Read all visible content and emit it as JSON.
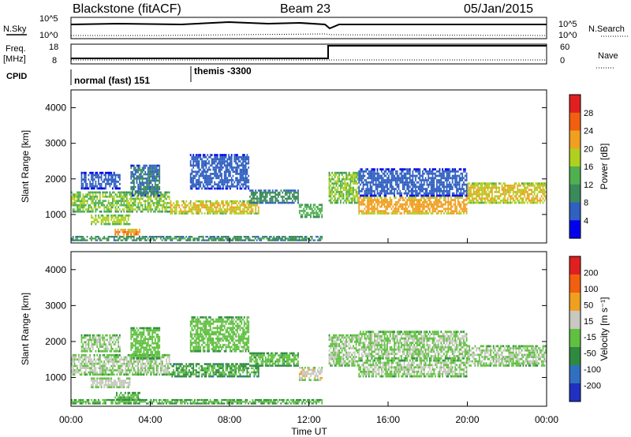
{
  "header": {
    "station": "Blackstone (fitACF)",
    "beam": "Beam 23",
    "date": "05/Jan/2015"
  },
  "params": {
    "nsky_label": "N.Sky",
    "nsearch_label": "N.Search",
    "freq_label": "Freq.",
    "freq_unit": "[MHz]",
    "nave_label": "Nave",
    "cpid_label": "CPID",
    "left_ticks_noise": [
      "10^5",
      "10^0"
    ],
    "right_ticks_noise": [
      "10^5",
      "10^0"
    ],
    "left_ticks_freq": [
      "18",
      "8"
    ],
    "right_ticks_nave": [
      "60",
      "0"
    ],
    "cpid_segments": [
      {
        "label": "normal (fast) 151",
        "start": "00:00"
      },
      {
        "label": "themis -3300",
        "start": "06:00"
      }
    ],
    "freq_step_time": "13:00"
  },
  "panels": {
    "power": {
      "ylabel": "Slant Range [km]",
      "cbar_label": "Power [dB]",
      "cbar_ticks": [
        "28",
        "24",
        "20",
        "16",
        "12",
        "8",
        "4"
      ]
    },
    "velocity": {
      "ylabel": "Slant Range [km]",
      "cbar_label": "Velocity [m s⁻¹]",
      "cbar_ticks": [
        "200",
        "100",
        "50",
        "15",
        "-15",
        "-50",
        "-100",
        "-200"
      ]
    }
  },
  "xaxis_label": "Time UT",
  "colors": {
    "power_scale": [
      "#0000ee",
      "#3060c0",
      "#3a8a5a",
      "#50b050",
      "#b0d020",
      "#f0a020",
      "#f06010",
      "#e02020"
    ],
    "velocity_scale": [
      "#2030c0",
      "#3070c0",
      "#2f8a3f",
      "#60c040",
      "#c8c8c0",
      "#f0a020",
      "#f06010",
      "#e02020"
    ]
  },
  "chart_data": [
    {
      "type": "heatmap",
      "title": "Power",
      "xlabel": "Time UT",
      "ylabel": "Slant Range [km]",
      "x_ticks": [
        "00:00",
        "04:00",
        "08:00",
        "12:00",
        "16:00",
        "20:00",
        "00:00"
      ],
      "y_ticks": [
        1000,
        2000,
        3000,
        4000
      ],
      "xlim": [
        0,
        24
      ],
      "ylim": [
        200,
        4500
      ],
      "colorbar": {
        "label": "Power [dB]",
        "ticks": [
          4,
          8,
          12,
          16,
          20,
          24,
          28
        ],
        "range": [
          0,
          32
        ]
      },
      "bands": [
        {
          "t0": 0.0,
          "t1": 5.0,
          "r0": 1050,
          "r1": 1650,
          "level": 16
        },
        {
          "t0": 0.5,
          "t1": 2.5,
          "r0": 1700,
          "r1": 2200,
          "level": 6
        },
        {
          "t0": 1.0,
          "t1": 3.0,
          "r0": 700,
          "r1": 1000,
          "level": 18
        },
        {
          "t0": 2.2,
          "t1": 3.5,
          "r0": 350,
          "r1": 600,
          "level": 24
        },
        {
          "t0": 3.0,
          "t1": 4.5,
          "r0": 1500,
          "r1": 2400,
          "level": 8
        },
        {
          "t0": 5.0,
          "t1": 9.5,
          "r0": 1000,
          "r1": 1400,
          "level": 20
        },
        {
          "t0": 6.0,
          "t1": 9.0,
          "r0": 1700,
          "r1": 2700,
          "level": 6
        },
        {
          "t0": 9.0,
          "t1": 11.5,
          "r0": 1300,
          "r1": 1700,
          "level": 10
        },
        {
          "t0": 11.5,
          "t1": 12.7,
          "r0": 900,
          "r1": 1300,
          "level": 14
        },
        {
          "t0": 13.0,
          "t1": 14.5,
          "r0": 1300,
          "r1": 2200,
          "level": 16
        },
        {
          "t0": 14.5,
          "t1": 20.0,
          "r0": 1000,
          "r1": 1500,
          "level": 22
        },
        {
          "t0": 14.5,
          "t1": 20.0,
          "r0": 1500,
          "r1": 2300,
          "level": 6
        },
        {
          "t0": 20.0,
          "t1": 24.0,
          "r0": 1300,
          "r1": 1900,
          "level": 20
        },
        {
          "t0": 0.0,
          "t1": 12.7,
          "r0": 250,
          "r1": 400,
          "level": 12
        }
      ]
    },
    {
      "type": "heatmap",
      "title": "Velocity",
      "xlabel": "Time UT",
      "ylabel": "Slant Range [km]",
      "x_ticks": [
        "00:00",
        "04:00",
        "08:00",
        "12:00",
        "16:00",
        "20:00",
        "00:00"
      ],
      "y_ticks": [
        1000,
        2000,
        3000,
        4000
      ],
      "xlim": [
        0,
        24
      ],
      "ylim": [
        200,
        4500
      ],
      "colorbar": {
        "label": "Velocity [m s⁻¹]",
        "ticks": [
          -200,
          -100,
          -50,
          -15,
          15,
          50,
          100,
          200
        ],
        "range": [
          -250,
          250
        ]
      },
      "bands": [
        {
          "t0": 0.0,
          "t1": 5.0,
          "r0": 1050,
          "r1": 1650,
          "level": 5
        },
        {
          "t0": 0.5,
          "t1": 2.5,
          "r0": 1700,
          "r1": 2200,
          "level": 0
        },
        {
          "t0": 1.0,
          "t1": 3.0,
          "r0": 700,
          "r1": 1000,
          "level": 30
        },
        {
          "t0": 2.2,
          "t1": 3.5,
          "r0": 350,
          "r1": 600,
          "level": -40
        },
        {
          "t0": 3.0,
          "t1": 4.5,
          "r0": 1500,
          "r1": 2400,
          "level": -30
        },
        {
          "t0": 5.0,
          "t1": 9.5,
          "r0": 1000,
          "r1": 1400,
          "level": -60
        },
        {
          "t0": 6.0,
          "t1": 9.0,
          "r0": 1700,
          "r1": 2700,
          "level": -25
        },
        {
          "t0": 9.0,
          "t1": 11.5,
          "r0": 1300,
          "r1": 1700,
          "level": -40
        },
        {
          "t0": 11.5,
          "t1": 12.7,
          "r0": 900,
          "r1": 1300,
          "level": 40
        },
        {
          "t0": 13.0,
          "t1": 14.5,
          "r0": 1300,
          "r1": 2200,
          "level": 0
        },
        {
          "t0": 14.5,
          "t1": 20.0,
          "r0": 1000,
          "r1": 1500,
          "level": 0
        },
        {
          "t0": 14.5,
          "t1": 20.0,
          "r0": 1500,
          "r1": 2300,
          "level": 0
        },
        {
          "t0": 20.0,
          "t1": 24.0,
          "r0": 1300,
          "r1": 1900,
          "level": 0
        },
        {
          "t0": 0.0,
          "t1": 12.7,
          "r0": 250,
          "r1": 400,
          "level": -30
        }
      ]
    }
  ]
}
